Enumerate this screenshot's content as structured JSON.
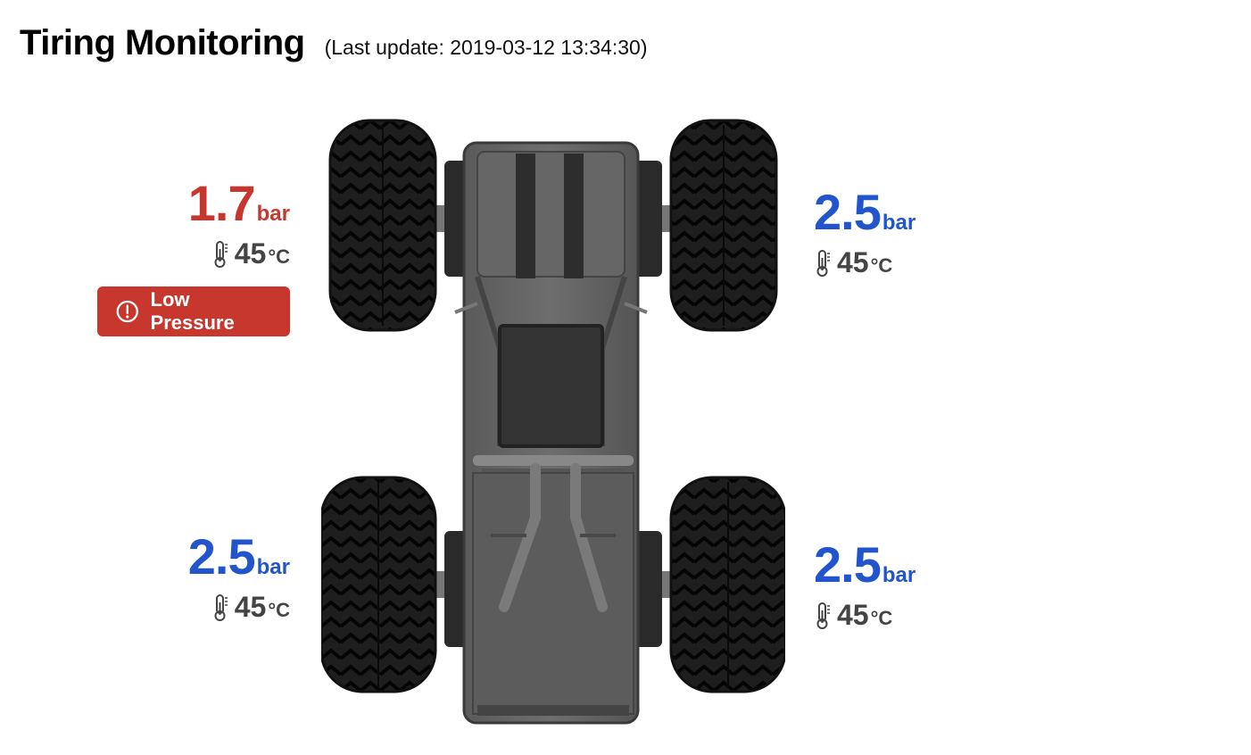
{
  "header": {
    "title": "Tiring Monitoring",
    "last_update": "(Last update: 2019-03-12 13:34:30)"
  },
  "colors": {
    "alert": "#c8372d",
    "normal": "#2255cc",
    "temp": "#444444"
  },
  "tires": {
    "front_left": {
      "pressure": "1.7",
      "pressure_unit": "bar",
      "temperature": "45",
      "temperature_unit": "°C",
      "status": "alert",
      "alert_label": "Low Pressure",
      "alert_icon": "exclamation-circle-icon"
    },
    "front_right": {
      "pressure": "2.5",
      "pressure_unit": "bar",
      "temperature": "45",
      "temperature_unit": "°C",
      "status": "normal"
    },
    "rear_left": {
      "pressure": "2.5",
      "pressure_unit": "bar",
      "temperature": "45",
      "temperature_unit": "°C",
      "status": "normal"
    },
    "rear_right": {
      "pressure": "2.5",
      "pressure_unit": "bar",
      "temperature": "45",
      "temperature_unit": "°C",
      "status": "normal"
    }
  },
  "icons": {
    "temperature": "thermometer-icon",
    "vehicle": "vehicle-top-view-icon"
  }
}
